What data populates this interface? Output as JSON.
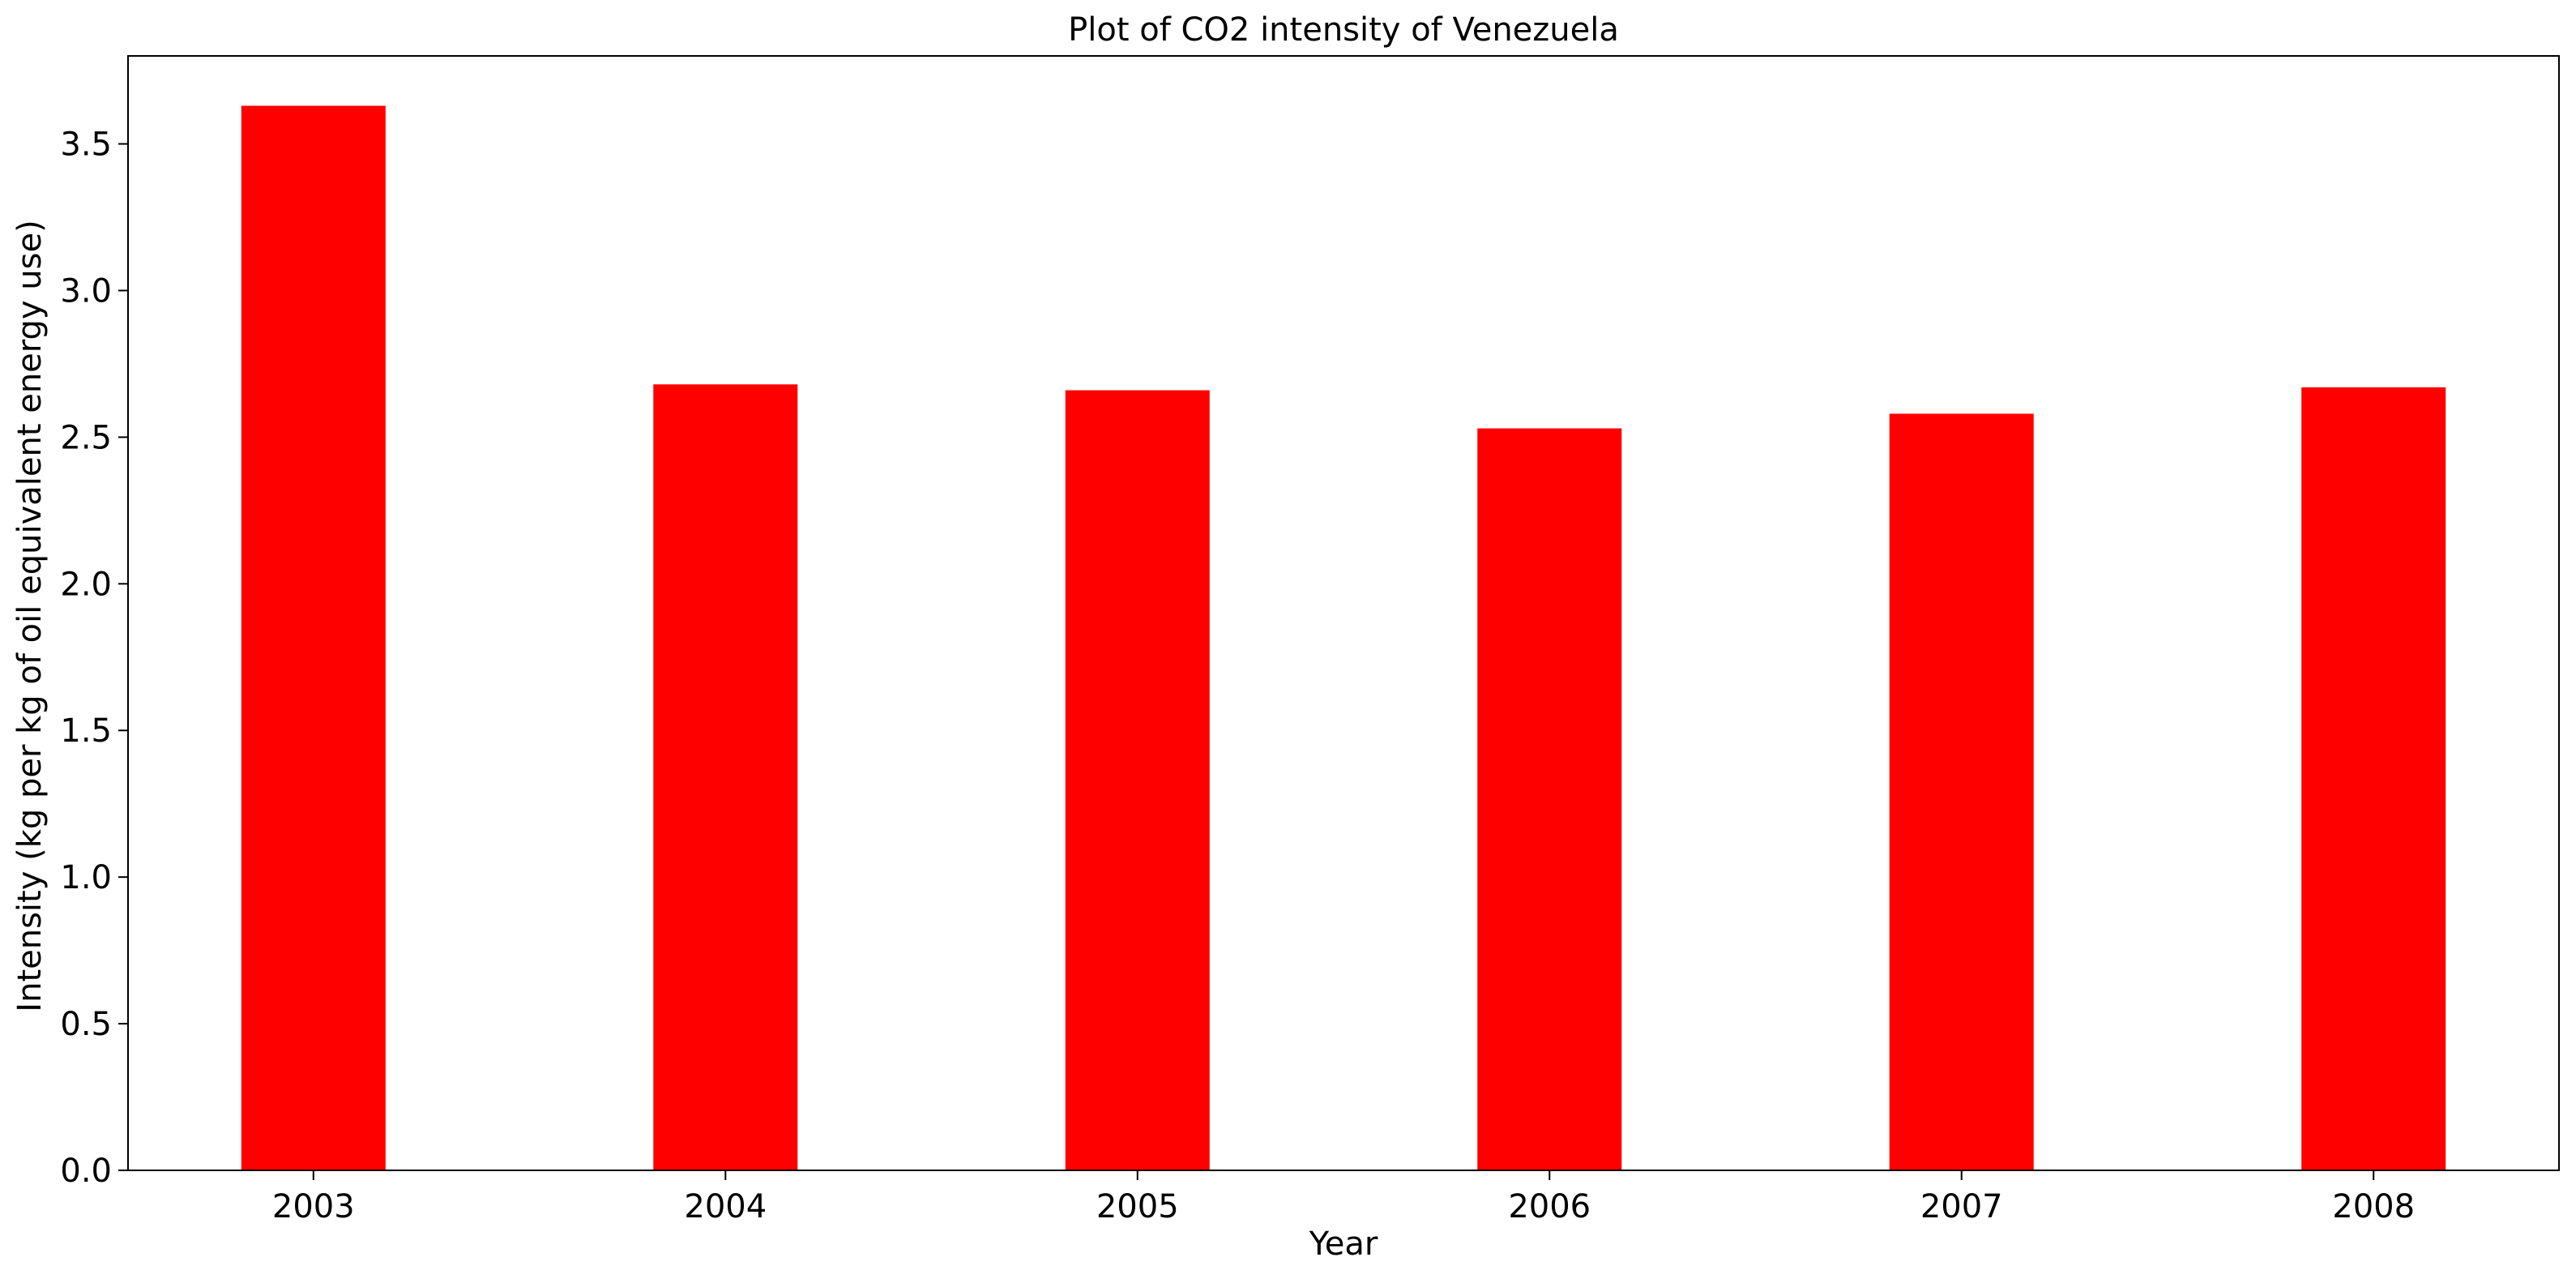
{
  "chart_data": {
    "type": "bar",
    "title": "Plot of CO2 intensity of Venezuela",
    "xlabel": "Year",
    "ylabel": "Intensity (kg per kg of oil equivalent energy use)",
    "categories": [
      "2003",
      "2004",
      "2005",
      "2006",
      "2007",
      "2008"
    ],
    "values": [
      3.63,
      2.68,
      2.66,
      2.53,
      2.58,
      2.67
    ],
    "ylim": [
      0,
      3.8
    ],
    "yticks": [
      "0.0",
      "0.5",
      "1.0",
      "1.5",
      "2.0",
      "2.5",
      "3.0",
      "3.5"
    ],
    "bar_color": "#ff0000",
    "grid": false,
    "legend": false
  }
}
